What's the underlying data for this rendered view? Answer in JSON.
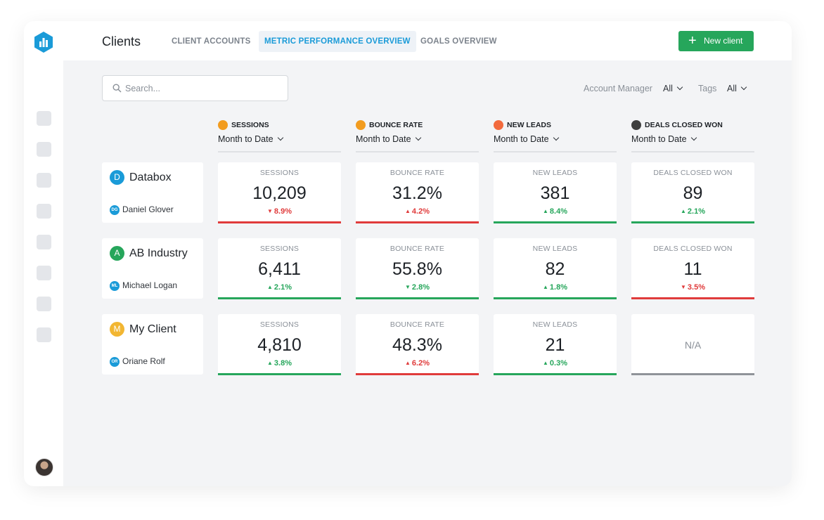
{
  "header": {
    "title": "Clients",
    "tabs": [
      "CLIENT ACCOUNTS",
      "METRIC PERFORMANCE OVERVIEW",
      "GOALS OVERVIEW"
    ],
    "active_tab": "METRIC PERFORMANCE OVERVIEW",
    "new_client_label": "New client"
  },
  "search": {
    "placeholder": "Search..."
  },
  "filters": {
    "account_manager_label": "Account Manager",
    "account_manager_value": "All",
    "tags_label": "Tags",
    "tags_value": "All"
  },
  "columns": [
    {
      "title": "SESSIONS",
      "period": "Month to Date",
      "icon": "google-analytics-icon",
      "icon_color": "#f29c1f"
    },
    {
      "title": "BOUNCE RATE",
      "period": "Month to Date",
      "icon": "google-analytics-icon",
      "icon_color": "#f29c1f"
    },
    {
      "title": "NEW LEADS",
      "period": "Month to Date",
      "icon": "hubspot-icon",
      "icon_color": "#f26a3d"
    },
    {
      "title": "DEALS CLOSED WON",
      "period": "Month to Date",
      "icon": "hubspot-icon",
      "icon_color": "#3f3f3f"
    }
  ],
  "clients": [
    {
      "initial": "D",
      "name": "Databox",
      "color": "#1a9bd8",
      "manager_initials": "DG",
      "manager": "Daniel Glover",
      "metrics": [
        {
          "label": "SESSIONS",
          "value": "10,209",
          "delta": "8.9%",
          "dir": "down"
        },
        {
          "label": "BOUNCE RATE",
          "value": "31.2%",
          "delta": "4.2%",
          "dir": "up",
          "status": "bad"
        },
        {
          "label": "NEW LEADS",
          "value": "381",
          "delta": "8.4%",
          "dir": "up"
        },
        {
          "label": "DEALS CLOSED WON",
          "value": "89",
          "delta": "2.1%",
          "dir": "up"
        }
      ]
    },
    {
      "initial": "A",
      "name": "AB Industry",
      "color": "#26a65b",
      "manager_initials": "ML",
      "manager": "Michael Logan",
      "metrics": [
        {
          "label": "SESSIONS",
          "value": "6,411",
          "delta": "2.1%",
          "dir": "up"
        },
        {
          "label": "BOUNCE RATE",
          "value": "55.8%",
          "delta": "2.8%",
          "dir": "down",
          "status": "good"
        },
        {
          "label": "NEW LEADS",
          "value": "82",
          "delta": "1.8%",
          "dir": "up"
        },
        {
          "label": "DEALS CLOSED WON",
          "value": "11",
          "delta": "3.5%",
          "dir": "down"
        }
      ]
    },
    {
      "initial": "M",
      "name": "My Client",
      "color": "#f2b632",
      "manager_initials": "OR",
      "manager": "Oriane Rolf",
      "metrics": [
        {
          "label": "SESSIONS",
          "value": "4,810",
          "delta": "3.8%",
          "dir": "up"
        },
        {
          "label": "BOUNCE RATE",
          "value": "48.3%",
          "delta": "6.2%",
          "dir": "up",
          "status": "bad"
        },
        {
          "label": "NEW LEADS",
          "value": "21",
          "delta": "0.3%",
          "dir": "up"
        },
        {
          "label": "DEALS CLOSED WON",
          "value": "N/A",
          "na": true
        }
      ]
    }
  ],
  "colors": {
    "good": "#26a65b",
    "bad": "#e03b3b",
    "neutral": "#8f9399",
    "accent": "#1a9bd8"
  }
}
